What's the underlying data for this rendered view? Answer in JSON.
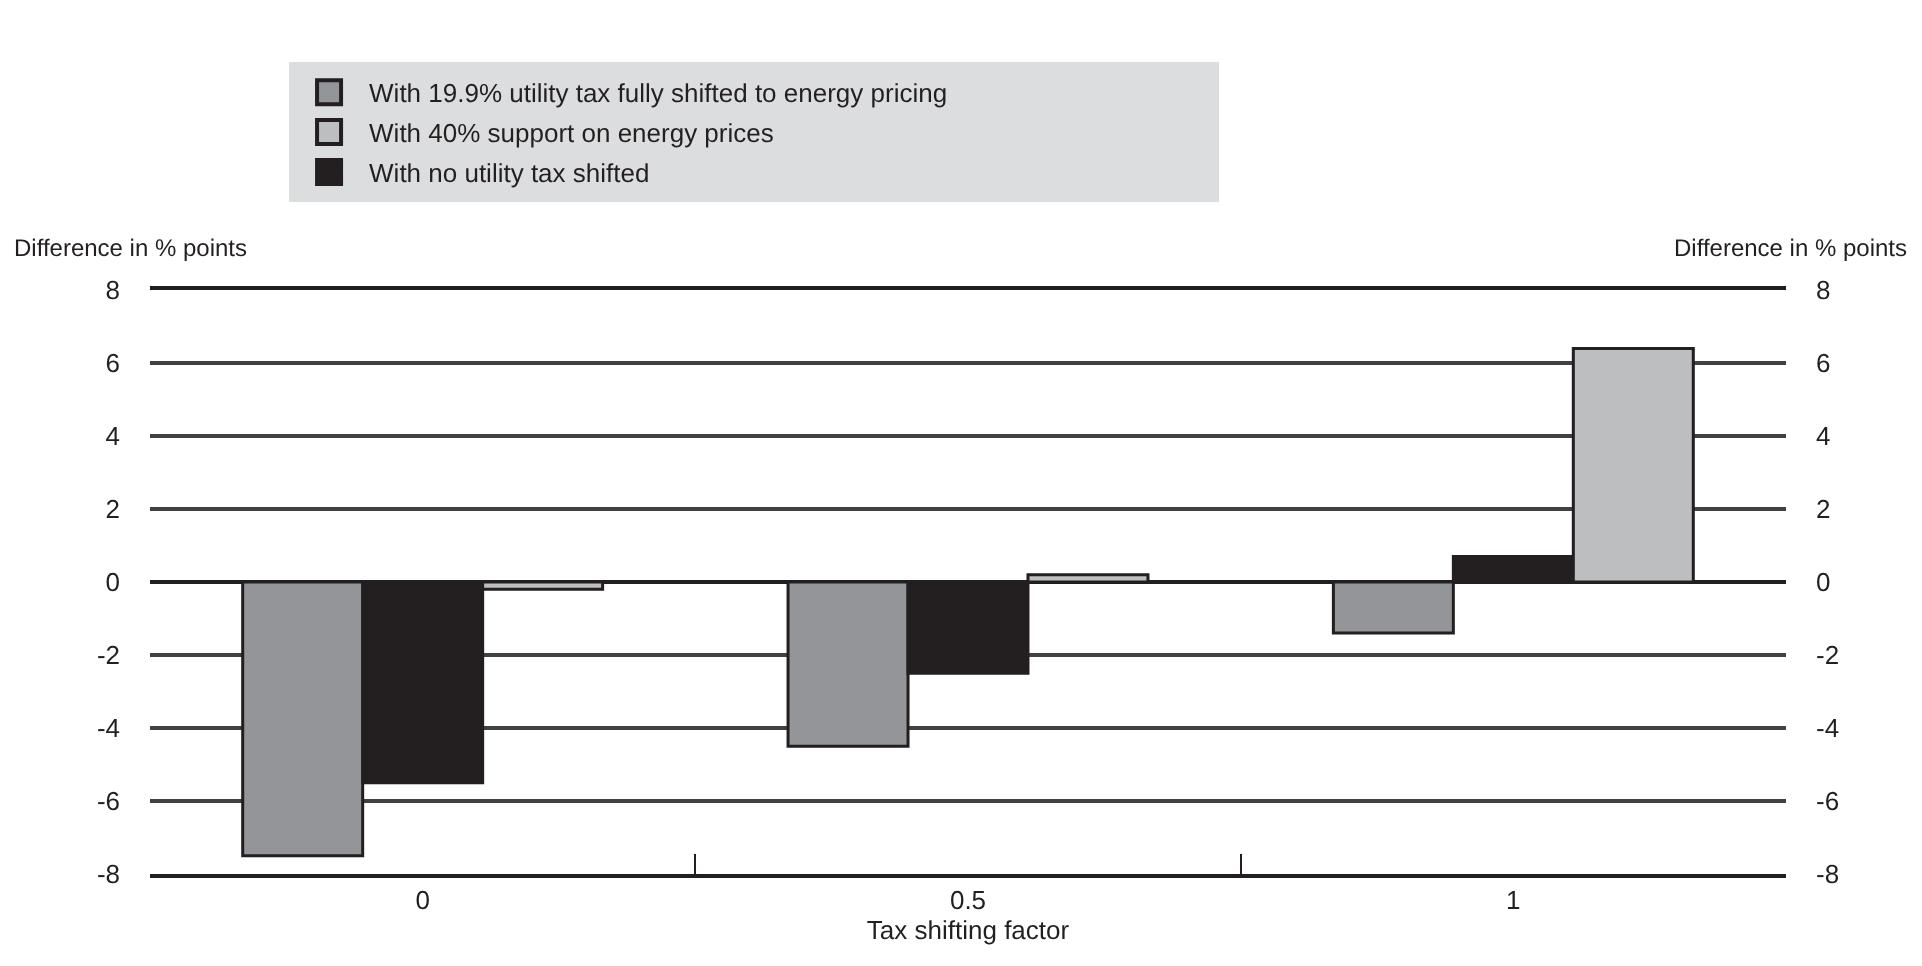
{
  "chart_data": {
    "type": "bar",
    "xlabel": "Tax shifting factor",
    "ylabel": "Difference in % points",
    "y2label": "Difference in % points",
    "categories": [
      "0",
      "0.5",
      "1"
    ],
    "series": [
      {
        "name": "With 19.9% utility tax fully shifted to energy pricing",
        "color": "#939598",
        "values": [
          -7.5,
          -4.5,
          -1.4
        ]
      },
      {
        "name": "With no utility tax shifted",
        "color": "#231f20",
        "values": [
          -5.5,
          -2.5,
          0.7
        ]
      },
      {
        "name": "With 40% support on energy prices",
        "color": "#bcbec0",
        "values": [
          -0.2,
          0.2,
          6.4
        ]
      }
    ],
    "ylim": [
      -8,
      8
    ],
    "yticks": [
      -8,
      -6,
      -4,
      -2,
      0,
      2,
      4,
      6,
      8
    ],
    "y2lim": [
      -8,
      8
    ],
    "y2ticks": [
      -8,
      -6,
      -4,
      -2,
      0,
      2,
      4,
      6,
      8
    ],
    "grid": "y",
    "legend": "top"
  }
}
